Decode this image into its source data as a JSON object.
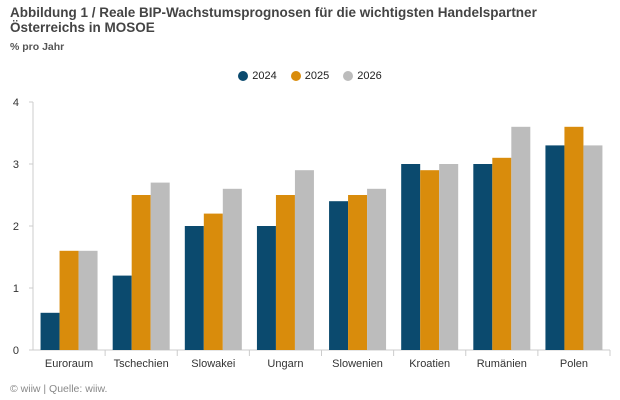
{
  "title": "Abbildung 1 / Reale BIP-Wachstumsprognosen für die wichtigsten Handelspartner Österreichs in MOSOE",
  "subtitle": "% pro Jahr",
  "source": "© wiiw | Quelle: wiiw.",
  "colors": {
    "2024": "#0b4a6e",
    "2025": "#d98c0c",
    "2026": "#bcbcbc",
    "axis": "#cccccc",
    "tick_text": "#333333"
  },
  "chart_data": {
    "type": "bar",
    "title": "Abbildung 1 / Reale BIP-Wachstumsprognosen für die wichtigsten Handelspartner Österreichs in MOSOE",
    "ylabel": "% pro Jahr",
    "xlabel": "",
    "ylim": [
      0,
      4
    ],
    "yticks": [
      0,
      1,
      2,
      3,
      4
    ],
    "grid": false,
    "legend_position": "top-center",
    "categories": [
      "Euroraum",
      "Tschechien",
      "Slowakei",
      "Ungarn",
      "Slowenien",
      "Kroatien",
      "Rumänien",
      "Polen"
    ],
    "series": [
      {
        "name": "2024",
        "color": "#0b4a6e",
        "values": [
          0.6,
          1.2,
          2.0,
          2.0,
          2.4,
          3.0,
          3.0,
          3.3
        ]
      },
      {
        "name": "2025",
        "color": "#d98c0c",
        "values": [
          1.6,
          2.5,
          2.2,
          2.5,
          2.5,
          2.9,
          3.1,
          3.6
        ]
      },
      {
        "name": "2026",
        "color": "#bcbcbc",
        "values": [
          1.6,
          2.7,
          2.6,
          2.9,
          2.6,
          3.0,
          3.6,
          3.3
        ]
      }
    ]
  }
}
